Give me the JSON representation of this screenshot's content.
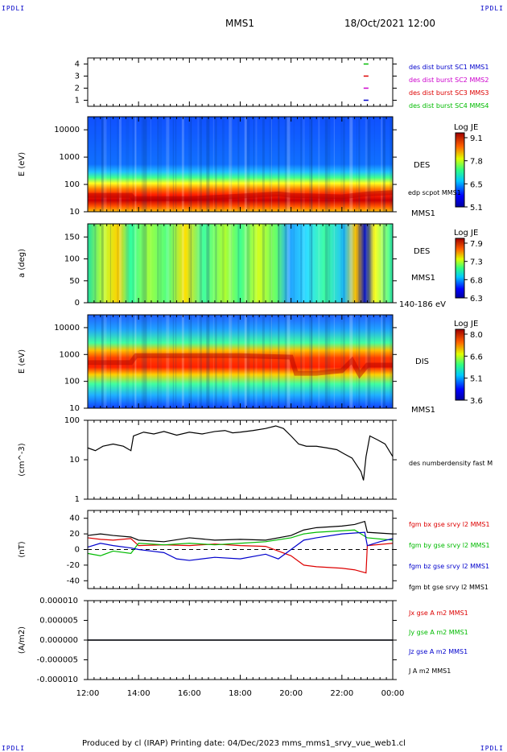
{
  "corner_tag": "IPDLI",
  "header": {
    "spacecraft": "MMS1",
    "datetime": "18/Oct/2021 12:00"
  },
  "footer": {
    "text": "Produced by cl (IRAP)   Printing date: 04/Dec/2023   mms_mms1_srvy_vue_web1.cl"
  },
  "time_axis": {
    "ticks": [
      "12:00",
      "14:00",
      "16:00",
      "18:00",
      "20:00",
      "22:00",
      "00:00"
    ],
    "start_h": 12,
    "end_h": 24
  },
  "chart_data": [
    {
      "type": "scatter",
      "panel": "burst",
      "yticks": [
        "4",
        "3",
        "2",
        "1"
      ],
      "yrange": [
        0.5,
        4.5
      ],
      "legend": [
        {
          "label": "des dist burst SC1 MMS1",
          "color": "#0000cc"
        },
        {
          "label": "des dist burst SC2 MMS2",
          "color": "#cc00cc"
        },
        {
          "label": "des dist burst SC3 MMS3",
          "color": "#dd0000"
        },
        {
          "label": "des dist burst SC4 MMS4",
          "color": "#00bb00"
        }
      ],
      "points": [
        {
          "t": 22.95,
          "y": 4,
          "color": "#00bb00"
        },
        {
          "t": 22.95,
          "y": 3,
          "color": "#dd0000"
        },
        {
          "t": 22.95,
          "y": 2,
          "color": "#cc00cc"
        },
        {
          "t": 22.95,
          "y": 1,
          "color": "#0000cc"
        }
      ]
    },
    {
      "type": "heatmap",
      "panel": "des-energy",
      "ylabel": "E (eV)",
      "yscale": "log",
      "ylim": [
        10,
        30000
      ],
      "yticks": [
        "10000",
        "1000",
        "100",
        "10"
      ],
      "labels": [
        "DES",
        "edp scpot MMS1",
        "MMS1"
      ],
      "colorbar": {
        "title": "Log JE",
        "ticks": [
          "9.1",
          "7.8",
          "6.5",
          "5.1"
        ]
      },
      "peak_energy_eV": [
        [
          12.0,
          40
        ],
        [
          13.7,
          40
        ],
        [
          13.8,
          30
        ],
        [
          16.0,
          30
        ],
        [
          17.5,
          35
        ],
        [
          19.5,
          45
        ],
        [
          20.0,
          40
        ],
        [
          22.0,
          35
        ],
        [
          23.0,
          45
        ],
        [
          24.0,
          50
        ]
      ]
    },
    {
      "type": "heatmap",
      "panel": "des-pitch",
      "ylabel": "a (deg)",
      "ylim": [
        0,
        180
      ],
      "yticks": [
        "150",
        "100",
        "50",
        "0"
      ],
      "labels": [
        "DES",
        "MMS1",
        "140-186 eV"
      ],
      "colorbar": {
        "title": "Log JE",
        "ticks": [
          "7.9",
          "7.3",
          "6.8",
          "6.3"
        ]
      }
    },
    {
      "type": "heatmap",
      "panel": "dis-energy",
      "ylabel": "E (eV)",
      "yscale": "log",
      "ylim": [
        10,
        30000
      ],
      "yticks": [
        "10000",
        "1000",
        "100",
        "10"
      ],
      "labels": [
        "DIS",
        "MMS1"
      ],
      "colorbar": {
        "title": "Log JE",
        "ticks": [
          "8.0",
          "6.6",
          "5.1",
          "3.6"
        ]
      },
      "peak_energy_eV": [
        [
          12.0,
          500
        ],
        [
          13.7,
          500
        ],
        [
          13.9,
          900
        ],
        [
          16.0,
          900
        ],
        [
          18.0,
          900
        ],
        [
          20.0,
          800
        ],
        [
          20.2,
          200
        ],
        [
          21.0,
          200
        ],
        [
          22.0,
          250
        ],
        [
          22.4,
          600
        ],
        [
          22.7,
          180
        ],
        [
          23.0,
          400
        ],
        [
          24.0,
          400
        ]
      ]
    },
    {
      "type": "line",
      "panel": "density",
      "ylabel": "(cm^-3)",
      "yscale": "log",
      "ylim": [
        1,
        100
      ],
      "yticks": [
        "100",
        "10",
        "1"
      ],
      "series": [
        {
          "name": "des numberdensity fast M",
          "color": "#000000",
          "points": [
            [
              12.0,
              20
            ],
            [
              12.3,
              17
            ],
            [
              12.6,
              22
            ],
            [
              13.0,
              25
            ],
            [
              13.4,
              22
            ],
            [
              13.7,
              17
            ],
            [
              13.8,
              40
            ],
            [
              14.2,
              50
            ],
            [
              14.6,
              45
            ],
            [
              15.0,
              52
            ],
            [
              15.5,
              42
            ],
            [
              16.0,
              50
            ],
            [
              16.5,
              45
            ],
            [
              17.0,
              52
            ],
            [
              17.4,
              55
            ],
            [
              17.7,
              48
            ],
            [
              18.0,
              50
            ],
            [
              18.5,
              55
            ],
            [
              19.0,
              62
            ],
            [
              19.4,
              72
            ],
            [
              19.7,
              62
            ],
            [
              20.0,
              40
            ],
            [
              20.3,
              25
            ],
            [
              20.6,
              22
            ],
            [
              21.0,
              22
            ],
            [
              21.4,
              20
            ],
            [
              21.8,
              18
            ],
            [
              22.1,
              14
            ],
            [
              22.4,
              11
            ],
            [
              22.6,
              7
            ],
            [
              22.75,
              5
            ],
            [
              22.85,
              3
            ],
            [
              22.95,
              12
            ],
            [
              23.1,
              40
            ],
            [
              23.4,
              32
            ],
            [
              23.7,
              25
            ],
            [
              24.0,
              12
            ]
          ]
        }
      ]
    },
    {
      "type": "line",
      "panel": "magnetic-field",
      "ylabel": "(nT)",
      "ylim": [
        -50,
        50
      ],
      "yticks": [
        "40",
        "20",
        "0",
        "-20",
        "-40"
      ],
      "series": [
        {
          "name": "fgm bx gse srvy l2 MMS1",
          "color": "#dd0000",
          "points": [
            [
              12.0,
              15
            ],
            [
              12.5,
              13
            ],
            [
              13.0,
              12
            ],
            [
              13.7,
              14
            ],
            [
              14.0,
              5
            ],
            [
              15.0,
              6
            ],
            [
              16.0,
              5
            ],
            [
              17.0,
              7
            ],
            [
              18.0,
              5
            ],
            [
              19.0,
              4
            ],
            [
              20.0,
              -8
            ],
            [
              20.5,
              -20
            ],
            [
              21.0,
              -22
            ],
            [
              22.0,
              -24
            ],
            [
              22.5,
              -26
            ],
            [
              22.95,
              -30
            ],
            [
              23.0,
              5
            ],
            [
              24.0,
              8
            ]
          ]
        },
        {
          "name": "fgm by gse srvy l2 MMS1",
          "color": "#00bb00",
          "points": [
            [
              12.0,
              -5
            ],
            [
              12.5,
              -8
            ],
            [
              13.0,
              -2
            ],
            [
              13.7,
              -5
            ],
            [
              14.0,
              8
            ],
            [
              15.0,
              6
            ],
            [
              16.0,
              8
            ],
            [
              17.0,
              6
            ],
            [
              18.0,
              8
            ],
            [
              19.0,
              10
            ],
            [
              20.0,
              15
            ],
            [
              20.5,
              20
            ],
            [
              21.0,
              22
            ],
            [
              22.0,
              24
            ],
            [
              22.5,
              25
            ],
            [
              23.0,
              15
            ],
            [
              24.0,
              12
            ]
          ]
        },
        {
          "name": "fgm bz gse srvy l2 MMS1",
          "color": "#0000cc",
          "points": [
            [
              12.0,
              3
            ],
            [
              12.5,
              8
            ],
            [
              13.0,
              5
            ],
            [
              13.7,
              2
            ],
            [
              14.0,
              0
            ],
            [
              14.5,
              -2
            ],
            [
              15.0,
              -4
            ],
            [
              15.5,
              -12
            ],
            [
              16.0,
              -14
            ],
            [
              17.0,
              -10
            ],
            [
              18.0,
              -12
            ],
            [
              19.0,
              -6
            ],
            [
              19.5,
              -12
            ],
            [
              20.0,
              0
            ],
            [
              20.5,
              12
            ],
            [
              21.0,
              15
            ],
            [
              22.0,
              20
            ],
            [
              22.9,
              22
            ],
            [
              23.0,
              5
            ],
            [
              23.5,
              10
            ],
            [
              24.0,
              14
            ]
          ]
        },
        {
          "name": "fgm bt gse srvy l2 MMS1",
          "color": "#000000",
          "points": [
            [
              12.0,
              18
            ],
            [
              12.5,
              20
            ],
            [
              13.0,
              18
            ],
            [
              13.7,
              16
            ],
            [
              14.0,
              12
            ],
            [
              15.0,
              10
            ],
            [
              16.0,
              15
            ],
            [
              17.0,
              12
            ],
            [
              18.0,
              13
            ],
            [
              19.0,
              12
            ],
            [
              20.0,
              18
            ],
            [
              20.5,
              25
            ],
            [
              21.0,
              28
            ],
            [
              22.0,
              30
            ],
            [
              22.5,
              32
            ],
            [
              22.9,
              36
            ],
            [
              23.0,
              22
            ],
            [
              24.0,
              20
            ]
          ]
        }
      ]
    },
    {
      "type": "line",
      "panel": "current-density",
      "ylabel": "(A/m2)",
      "ylim": [
        -1e-05,
        1e-05
      ],
      "yticks": [
        "0.000010",
        "0.000005",
        "0.000000",
        "-0.000005",
        "-0.000010"
      ],
      "series": [
        {
          "name": "Jx gse A m2 MMS1",
          "color": "#dd0000",
          "points": [
            [
              12,
              0
            ],
            [
              24,
              0
            ]
          ]
        },
        {
          "name": "Jy gse A m2 MMS1",
          "color": "#00bb00",
          "points": [
            [
              12,
              0
            ],
            [
              24,
              0
            ]
          ]
        },
        {
          "name": "Jz gse A m2 MMS1",
          "color": "#0000cc",
          "points": [
            [
              12,
              0
            ],
            [
              24,
              0
            ]
          ]
        },
        {
          "name": "J A m2 MMS1",
          "color": "#000000",
          "points": [
            [
              12,
              0
            ],
            [
              24,
              0
            ]
          ]
        }
      ]
    }
  ]
}
